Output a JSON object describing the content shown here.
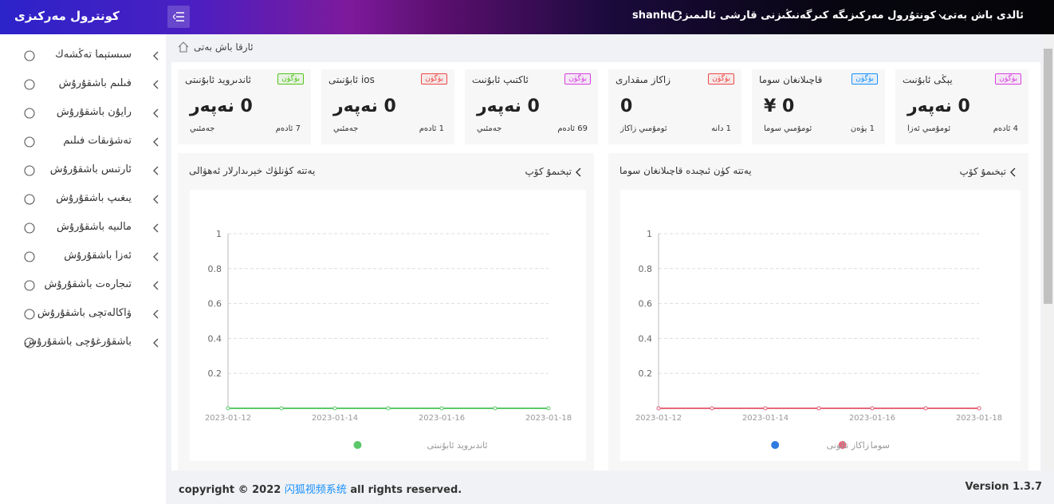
{
  "header": {
    "title": "كونترول مەركىزى",
    "welcome": "كونتۇرول مەركىزىگە كىرگەنىڭىزنى قارشى ئالىمىز: shanhu",
    "home_button": "ئالدى باش بەتى"
  },
  "sidebar": {
    "items": [
      "سىستېما تەڭشەك",
      "فىلىم باشقۇرۇش",
      "رايۇن باشقۇرۇش",
      "تەشۋىقات فىلىم",
      "ئارتىس باشقۇرۇش",
      "يىغىپ باشقۇرۇش",
      "مالىيە باشقۇرۇش",
      "ئەزا باشقۇرۇش",
      "تىجارەت باشقۇرۇش",
      "ۋاكالەتچى باشقۇرۇش",
      "باشقۇرغۇچى باشقۇرۇش"
    ]
  },
  "breadcrumb": "ئارقا باش بەتى",
  "stats": [
    {
      "title": "يېڭى ئابۇنىت",
      "badge": "بۈگۈن",
      "badge_color": "#d63fe0",
      "value": "0 نەپەر",
      "footer_label": "ئومۇمىي ئەزا",
      "footer_value": "4 ئادەم"
    },
    {
      "title": "قاچىلانغان سوما",
      "badge": "بۈگۈن",
      "badge_color": "#1890ff",
      "value": "¥ 0",
      "footer_label": "ئومۇمىي سوما",
      "footer_value": "1 يۈەن"
    },
    {
      "title": "زاكاز مىقدارى",
      "badge": "بۈگۈن",
      "badge_color": "#f04848",
      "value": "0",
      "footer_label": "ئومۇمىي زاكاز",
      "footer_value": "1 دانە"
    },
    {
      "title": "ئاكتىپ ئابۇنىت",
      "badge": "بۈگۈن",
      "badge_color": "#d63fe0",
      "value": "0 نەپەر",
      "footer_label": "جەمئىي",
      "footer_value": "69 ئادەم"
    },
    {
      "title": "ios ئابۇنىتى",
      "badge": "بۈگۈن",
      "badge_color": "#f04848",
      "value": "0 نەپەر",
      "footer_label": "جەمئىي",
      "footer_value": "1 ئادەم"
    },
    {
      "title": "ئاندىروید ئابۇنىتى",
      "badge": "بۈگۈن",
      "badge_color": "#52c41a",
      "value": "0 نەپەر",
      "footer_label": "جەمئىي",
      "footer_value": "7 ئادەم"
    }
  ],
  "charts": [
    {
      "type": "line",
      "title": "يەتتە كۈنلۈك خېرىدارلار ئەھۋالى",
      "more_link": "تېخىمۇ كۆپ",
      "categories": [
        "2023-01-12",
        null,
        "2023-01-14",
        null,
        "2023-01-16",
        null,
        "2023-01-18"
      ],
      "series": [
        {
          "name": "ئاندىروید ئابۇنىتى",
          "color": "#5cc86a",
          "values": [
            0,
            0,
            0,
            0,
            0,
            0,
            0
          ]
        }
      ],
      "ylim": [
        0,
        1
      ],
      "yticks": [
        0.2,
        0.4,
        0.6,
        0.8,
        1
      ],
      "grid": true
    },
    {
      "type": "line",
      "title": "يەتتە كۈن ئىچىدە قاچىلانغان سوما",
      "more_link": "تېخىمۇ كۆپ",
      "categories": [
        "2023-01-12",
        null,
        "2023-01-14",
        null,
        "2023-01-16",
        null,
        "2023-01-18"
      ],
      "series": [
        {
          "name": "سوما",
          "color": "#e8677c",
          "values": [
            0,
            0,
            0,
            0,
            0,
            0,
            0
          ]
        },
        {
          "name": "زاكاز تالونى",
          "color": "#2f7be0",
          "values": [
            0,
            0,
            0,
            0,
            0,
            0,
            0
          ]
        }
      ],
      "ylim": [
        0,
        1
      ],
      "yticks": [
        0.2,
        0.4,
        0.6,
        0.8,
        1
      ],
      "grid": true
    }
  ],
  "footer": {
    "copyright": "copyright © 2022",
    "brand": "闪狐视频系统",
    "rights": "all rights reserved.",
    "version": "Version 1.3.7"
  }
}
